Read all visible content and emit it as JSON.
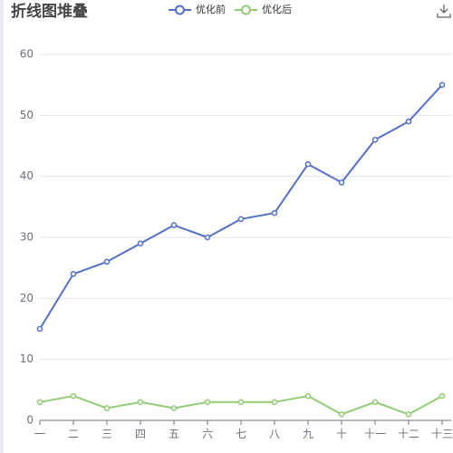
{
  "title": "折线图堆叠",
  "legend": [
    {
      "name": "优化前",
      "color": "#5470c6"
    },
    {
      "name": "优化后",
      "color": "#91cc75"
    }
  ],
  "toolbox": {
    "icon": "download-icon"
  },
  "chart_data": {
    "type": "line",
    "title": "折线图堆叠",
    "categories": [
      "一",
      "二",
      "三",
      "四",
      "五",
      "六",
      "七",
      "八",
      "九",
      "十",
      "十一",
      "十二",
      "十三"
    ],
    "series": [
      {
        "name": "优化前",
        "color": "#5470c6",
        "values": [
          15,
          24,
          26,
          29,
          32,
          30,
          33,
          34,
          42,
          39,
          46,
          49,
          55
        ]
      },
      {
        "name": "优化后",
        "color": "#91cc75",
        "values": [
          3,
          4,
          2,
          3,
          2,
          3,
          3,
          3,
          4,
          1,
          3,
          1,
          4
        ]
      }
    ],
    "ylim": [
      0,
      60
    ],
    "yticks": [
      0,
      10,
      20,
      30,
      40,
      50,
      60
    ],
    "grid": true,
    "legend_position": "top-center"
  }
}
